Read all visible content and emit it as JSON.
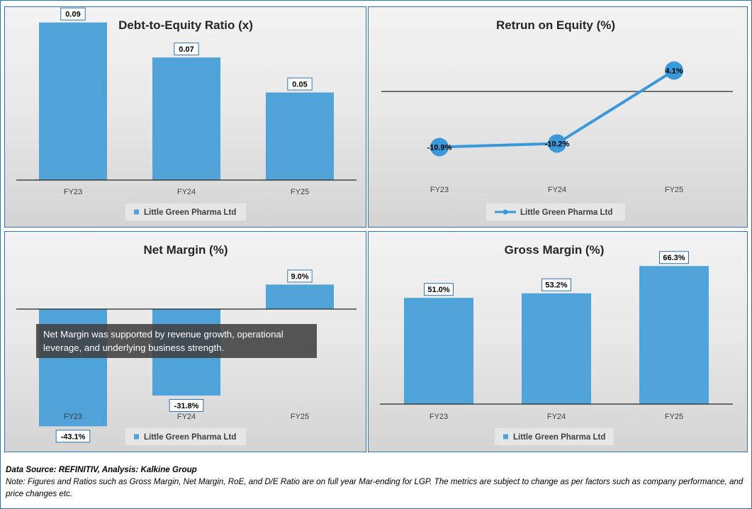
{
  "chart_data": [
    {
      "type": "bar",
      "title": "Debt-to-Equity Ratio (x)",
      "categories": [
        "FY23",
        "FY24",
        "FY25"
      ],
      "series": [
        {
          "name": "Little Green Pharma Ltd",
          "values": [
            0.09,
            0.07,
            0.05
          ]
        }
      ],
      "data_labels": [
        "0.09",
        "0.07",
        "0.05"
      ],
      "ylim": [
        0,
        0.1
      ],
      "legend": "bottom",
      "color": "#4fa3d8"
    },
    {
      "type": "line",
      "title": "Retrun on Equity (%)",
      "categories": [
        "FY23",
        "FY24",
        "FY25"
      ],
      "series": [
        {
          "name": "Little Green Pharma Ltd",
          "values": [
            -10.9,
            -10.2,
            4.1
          ]
        }
      ],
      "data_labels": [
        "-10.9%",
        "-10.2%",
        "4.1%"
      ],
      "ylim": [
        -15,
        5
      ],
      "legend": "bottom",
      "color": "#3a9ad9"
    },
    {
      "type": "bar",
      "title": "Net Margin (%)",
      "categories": [
        "FY23",
        "FY24",
        "FY25"
      ],
      "series": [
        {
          "name": "Little Green Pharma Ltd",
          "values": [
            -43.1,
            -31.8,
            9.0
          ]
        }
      ],
      "data_labels": [
        "-43.1%",
        "-31.8%",
        "9.0%"
      ],
      "ylim": [
        -50,
        20
      ],
      "legend": "bottom",
      "color": "#4fa3d8",
      "annotation": "Net Margin was supported by revenue growth, operational leverage, and underlying business strength."
    },
    {
      "type": "bar",
      "title": "Gross Margin (%)",
      "categories": [
        "FY23",
        "FY24",
        "FY25"
      ],
      "series": [
        {
          "name": "Little Green Pharma Ltd",
          "values": [
            51.0,
            53.2,
            66.3
          ]
        }
      ],
      "data_labels": [
        "51.0%",
        "53.2%",
        "66.3%"
      ],
      "ylim": [
        0,
        80
      ],
      "legend": "bottom",
      "color": "#4fa3d8"
    }
  ],
  "footer": {
    "source": "Data Source: REFINITIV, Analysis: Kalkine Group",
    "note": "Note: Figures and Ratios such as Gross Margin, Net Margin, RoE, and D/E Ratio  are on full year Mar-ending for LGP. The metrics are subject to change as per factors such as company performance, and price changes etc."
  }
}
